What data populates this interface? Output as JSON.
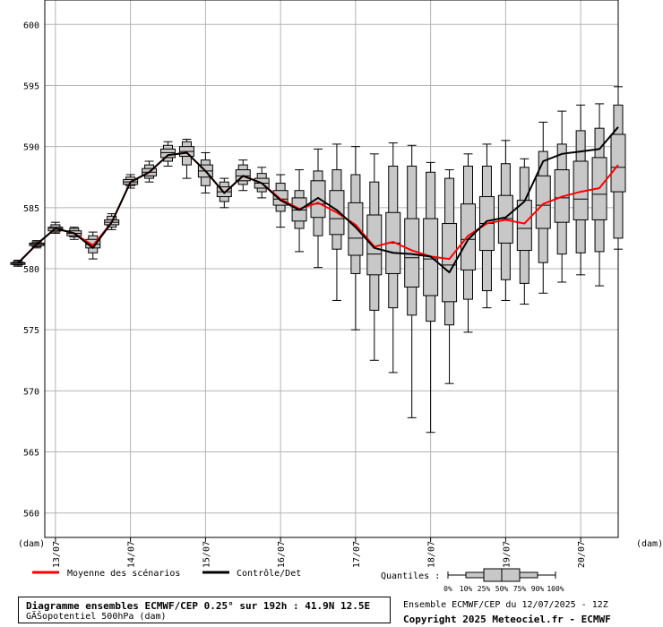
{
  "chart_data": {
    "type": "boxplot",
    "title": "Diagramme ensembles ECMWF/CEP 0.25° sur 192h : 41.9N 12.5E",
    "subtitle": "GÃŠopotentiel 500hPa (dam)",
    "run_info": "Ensemble ECMWF/CEP du 12/07/2025 - 12Z",
    "copyright": "Copyright 2025 Meteociel.fr - ECMWF",
    "ylabel_left": "(dam)",
    "ylabel_right": "(dam)",
    "ylim": [
      558,
      602
    ],
    "yticks": [
      560,
      565,
      570,
      575,
      580,
      585,
      590,
      595,
      600
    ],
    "x_range": [
      0,
      192
    ],
    "x_ticks": [
      {
        "x": 12,
        "label": "13/07"
      },
      {
        "x": 36,
        "label": "14/07"
      },
      {
        "x": 60,
        "label": "15/07"
      },
      {
        "x": 84,
        "label": "16/07"
      },
      {
        "x": 108,
        "label": "17/07"
      },
      {
        "x": 132,
        "label": "18/07"
      },
      {
        "x": 156,
        "label": "19/07"
      },
      {
        "x": 180,
        "label": "20/07"
      }
    ],
    "grid": true,
    "boxes": [
      {
        "x": 0,
        "min": 580.2,
        "q10": 580.3,
        "q25": 580.35,
        "median": 580.45,
        "q75": 580.5,
        "q90": 580.6,
        "max": 580.7
      },
      {
        "x": 6,
        "min": 581.7,
        "q10": 581.8,
        "q25": 581.9,
        "median": 582.0,
        "q75": 582.1,
        "q90": 582.2,
        "max": 582.3
      },
      {
        "x": 12,
        "min": 582.9,
        "q10": 583.0,
        "q25": 583.1,
        "median": 583.3,
        "q75": 583.4,
        "q90": 583.6,
        "max": 583.8
      },
      {
        "x": 18,
        "min": 582.4,
        "q10": 582.6,
        "q25": 582.7,
        "median": 582.9,
        "q75": 583.1,
        "q90": 583.3,
        "max": 583.4
      },
      {
        "x": 24,
        "min": 580.8,
        "q10": 581.3,
        "q25": 581.7,
        "median": 582.0,
        "q75": 582.4,
        "q90": 582.7,
        "max": 583.0
      },
      {
        "x": 30,
        "min": 583.2,
        "q10": 583.4,
        "q25": 583.6,
        "median": 583.8,
        "q75": 584.0,
        "q90": 584.3,
        "max": 584.5
      },
      {
        "x": 36,
        "min": 586.6,
        "q10": 586.8,
        "q25": 586.9,
        "median": 587.1,
        "q75": 587.3,
        "q90": 587.5,
        "max": 587.7
      },
      {
        "x": 42,
        "min": 587.1,
        "q10": 587.4,
        "q25": 587.6,
        "median": 587.9,
        "q75": 588.2,
        "q90": 588.5,
        "max": 588.8
      },
      {
        "x": 48,
        "min": 588.4,
        "q10": 588.8,
        "q25": 589.1,
        "median": 589.5,
        "q75": 589.8,
        "q90": 590.1,
        "max": 590.4
      },
      {
        "x": 54,
        "min": 587.4,
        "q10": 588.5,
        "q25": 589.2,
        "median": 589.6,
        "q75": 590.0,
        "q90": 590.4,
        "max": 590.6
      },
      {
        "x": 60,
        "min": 586.2,
        "q10": 586.8,
        "q25": 587.5,
        "median": 588.0,
        "q75": 588.5,
        "q90": 588.9,
        "max": 589.5
      },
      {
        "x": 66,
        "min": 585.0,
        "q10": 585.5,
        "q25": 585.9,
        "median": 586.3,
        "q75": 586.7,
        "q90": 587.1,
        "max": 587.4
      },
      {
        "x": 72,
        "min": 586.4,
        "q10": 586.9,
        "q25": 587.2,
        "median": 587.6,
        "q75": 588.1,
        "q90": 588.5,
        "max": 588.9
      },
      {
        "x": 78,
        "min": 585.8,
        "q10": 586.3,
        "q25": 586.6,
        "median": 587.0,
        "q75": 587.4,
        "q90": 587.8,
        "max": 588.3
      },
      {
        "x": 84,
        "min": 583.4,
        "q10": 584.7,
        "q25": 585.2,
        "median": 585.7,
        "q75": 586.4,
        "q90": 587.0,
        "max": 587.7
      },
      {
        "x": 90,
        "min": 581.4,
        "q10": 583.3,
        "q25": 583.9,
        "median": 584.8,
        "q75": 585.8,
        "q90": 586.4,
        "max": 588.1
      },
      {
        "x": 96,
        "min": 580.1,
        "q10": 582.7,
        "q25": 584.2,
        "median": 585.3,
        "q75": 587.2,
        "q90": 588.0,
        "max": 589.8
      },
      {
        "x": 102,
        "min": 577.4,
        "q10": 581.6,
        "q25": 582.8,
        "median": 584.1,
        "q75": 586.4,
        "q90": 588.1,
        "max": 590.2
      },
      {
        "x": 108,
        "min": 575.0,
        "q10": 579.6,
        "q25": 581.1,
        "median": 582.5,
        "q75": 585.4,
        "q90": 587.7,
        "max": 590.0
      },
      {
        "x": 114,
        "min": 572.5,
        "q10": 576.6,
        "q25": 579.5,
        "median": 581.2,
        "q75": 584.4,
        "q90": 587.1,
        "max": 589.4
      },
      {
        "x": 120,
        "min": 571.5,
        "q10": 576.8,
        "q25": 579.6,
        "median": 582.1,
        "q75": 584.6,
        "q90": 588.4,
        "max": 590.3
      },
      {
        "x": 126,
        "min": 567.8,
        "q10": 576.2,
        "q25": 578.5,
        "median": 580.9,
        "q75": 584.1,
        "q90": 588.4,
        "max": 590.1
      },
      {
        "x": 132,
        "min": 566.6,
        "q10": 575.7,
        "q25": 577.8,
        "median": 580.8,
        "q75": 584.1,
        "q90": 587.9,
        "max": 588.7
      },
      {
        "x": 138,
        "min": 570.6,
        "q10": 575.4,
        "q25": 577.3,
        "median": 580.3,
        "q75": 583.7,
        "q90": 587.4,
        "max": 588.1
      },
      {
        "x": 144,
        "min": 574.8,
        "q10": 577.5,
        "q25": 579.9,
        "median": 582.4,
        "q75": 585.3,
        "q90": 588.4,
        "max": 589.4
      },
      {
        "x": 150,
        "min": 576.8,
        "q10": 578.2,
        "q25": 581.5,
        "median": 583.7,
        "q75": 585.9,
        "q90": 588.4,
        "max": 590.2
      },
      {
        "x": 156,
        "min": 577.4,
        "q10": 579.1,
        "q25": 582.1,
        "median": 584.1,
        "q75": 586.0,
        "q90": 588.6,
        "max": 590.5
      },
      {
        "x": 162,
        "min": 577.1,
        "q10": 578.8,
        "q25": 581.5,
        "median": 583.3,
        "q75": 585.6,
        "q90": 588.3,
        "max": 589.0
      },
      {
        "x": 168,
        "min": 578.0,
        "q10": 580.5,
        "q25": 583.3,
        "median": 585.2,
        "q75": 587.6,
        "q90": 589.6,
        "max": 592.0
      },
      {
        "x": 174,
        "min": 578.9,
        "q10": 581.2,
        "q25": 583.8,
        "median": 585.8,
        "q75": 588.1,
        "q90": 590.2,
        "max": 592.9
      },
      {
        "x": 180,
        "min": 579.5,
        "q10": 581.3,
        "q25": 584.0,
        "median": 585.7,
        "q75": 588.8,
        "q90": 591.3,
        "max": 593.4
      },
      {
        "x": 186,
        "min": 578.6,
        "q10": 581.4,
        "q25": 584.0,
        "median": 586.1,
        "q75": 589.1,
        "q90": 591.5,
        "max": 593.5
      },
      {
        "x": 192,
        "min": 581.6,
        "q10": 582.5,
        "q25": 586.3,
        "median": 588.3,
        "q75": 591.0,
        "q90": 593.4,
        "max": 594.9
      }
    ],
    "series": [
      {
        "name": "Moyenne des scénarios",
        "color": "#ff0000",
        "values": [
          580.45,
          582.0,
          583.3,
          582.9,
          581.9,
          583.8,
          587.1,
          587.9,
          589.3,
          589.5,
          588.0,
          586.2,
          587.6,
          587.0,
          585.7,
          584.9,
          585.4,
          584.6,
          583.6,
          581.8,
          582.2,
          581.5,
          581.0,
          580.8,
          582.7,
          583.7,
          584.0,
          583.7,
          585.3,
          585.9,
          586.3,
          586.6,
          588.5
        ]
      },
      {
        "name": "Contrôle/Det",
        "color": "#000000",
        "values": [
          580.45,
          582.0,
          583.3,
          582.9,
          581.7,
          583.8,
          587.1,
          587.9,
          589.3,
          589.5,
          588.0,
          586.2,
          587.6,
          587.0,
          585.6,
          584.8,
          585.8,
          584.8,
          583.4,
          581.7,
          581.3,
          581.2,
          581.0,
          579.7,
          582.4,
          583.9,
          584.2,
          585.5,
          588.8,
          589.4,
          589.6,
          589.8,
          591.6
        ]
      }
    ],
    "legend": {
      "placement": "bottom",
      "quantiles_label": "Quantiles :",
      "quantile_ticks": [
        "0%",
        "10%",
        "25%",
        "50%",
        "75%",
        "90%",
        "100%"
      ]
    }
  }
}
